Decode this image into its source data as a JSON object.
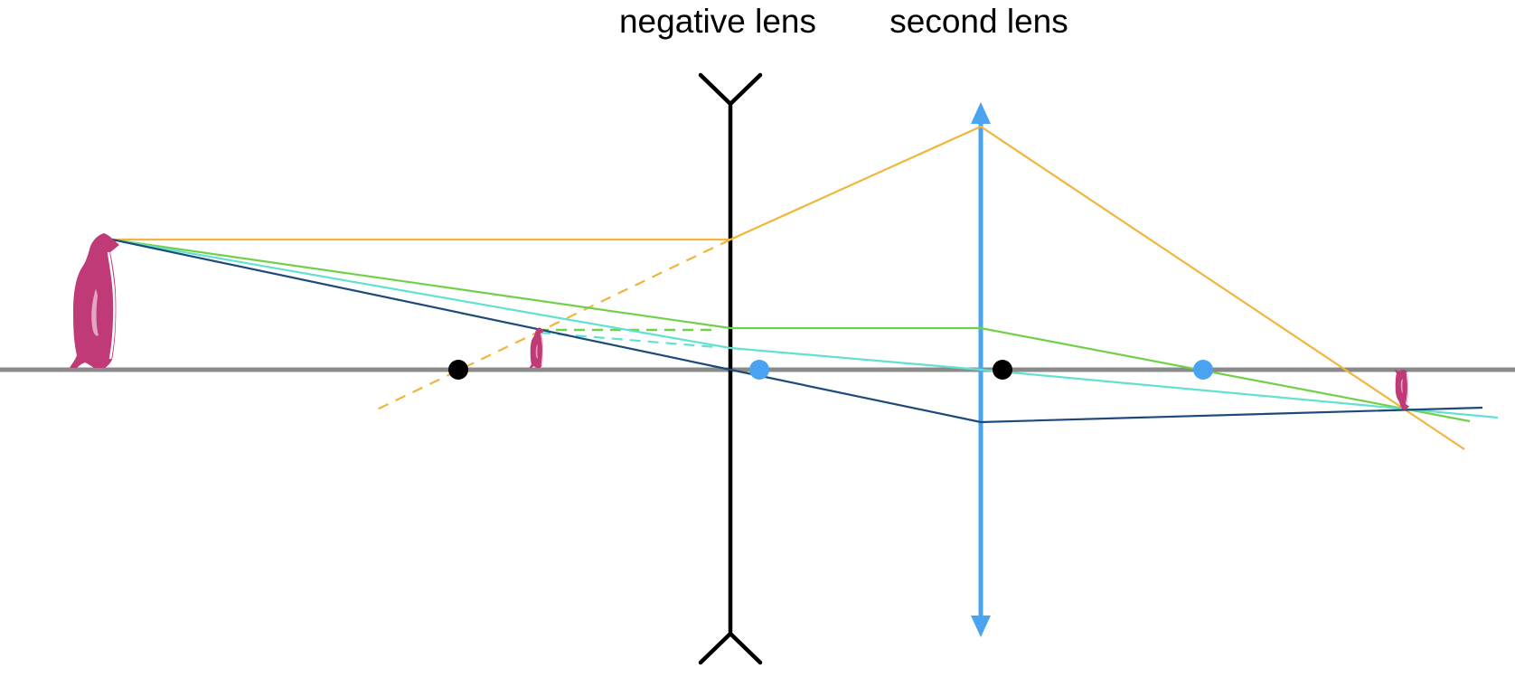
{
  "labels": {
    "negative_lens": "negative lens",
    "second_lens": "second lens"
  },
  "colors": {
    "axis": "#8a8a8a",
    "negative_lens": "#000000",
    "second_lens": "#4aa3f0",
    "focal_point_negative": "#000000",
    "focal_point_second": "#4aa3f0",
    "penguin": "#c03a78",
    "ray_orange": "#f0b63c",
    "ray_green": "#72cf4a",
    "ray_cyan": "#62e0d0",
    "ray_navy": "#1d4a7a"
  },
  "icons": {
    "object": "penguin-icon",
    "intermediate_image": "penguin-icon",
    "final_image": "penguin-icon-inverted"
  }
}
